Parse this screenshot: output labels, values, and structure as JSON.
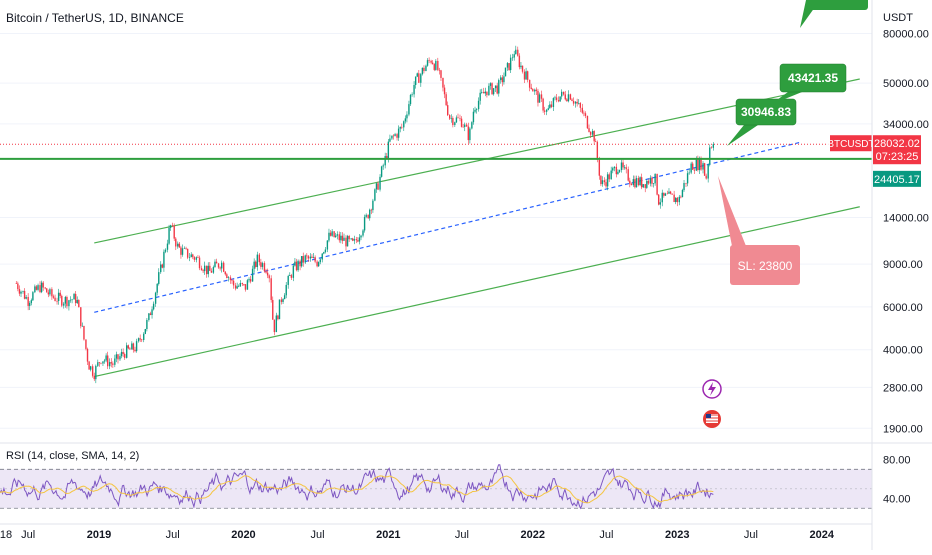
{
  "header": {
    "symbol_title": "Bitcoin / TetherUS, 1D, BINANCE"
  },
  "price_axis": {
    "currency": "USDT",
    "ticks": [
      {
        "label": "80000.00",
        "value": 80000
      },
      {
        "label": "50000.00",
        "value": 50000
      },
      {
        "label": "34000.00",
        "value": 34000
      },
      {
        "label": "14000.00",
        "value": 14000
      },
      {
        "label": "9000.00",
        "value": 9000
      },
      {
        "label": "6000.00",
        "value": 6000
      },
      {
        "label": "4000.00",
        "value": 4000
      },
      {
        "label": "2800.00",
        "value": 2800
      },
      {
        "label": "1900.00",
        "value": 1900
      }
    ],
    "last_price_tag": {
      "symbol": "BTCUSDT",
      "price": "28032.02",
      "countdown": "07:23:25",
      "value": 28032.02,
      "color": "#f23645"
    },
    "level_tag": {
      "label": "24405.17",
      "value": 24405.17,
      "color": "#089981"
    }
  },
  "time_axis": {
    "ticks": [
      "18",
      "Jul",
      "2019",
      "Jul",
      "2020",
      "Jul",
      "2021",
      "Jul",
      "2022",
      "Jul",
      "2023",
      "Jul",
      "2024"
    ]
  },
  "annotations": {
    "target_1": {
      "text": "30946.83",
      "value": 30946.83,
      "color": "#2e9e3e"
    },
    "target_2": {
      "text": "43421.35",
      "value": 43421.35,
      "color": "#2e9e3e"
    },
    "stop_loss": {
      "text": "SL: 23800",
      "value": 23800,
      "color": "#f08a92"
    }
  },
  "event_icons": [
    {
      "name": "lightning-icon",
      "color": "#9c27b0"
    },
    {
      "name": "us-flag-icon",
      "color": "#e53935"
    }
  ],
  "rsi_panel": {
    "title": "RSI (14, close, SMA, 14, 2)",
    "ticks": [
      {
        "label": "80.00",
        "value": 80
      },
      {
        "label": "40.00",
        "value": 40
      }
    ],
    "upper_band": 70,
    "lower_band": 30,
    "middle_band": 50,
    "band_fill": "#ede7f6",
    "rsi_color": "#7e57c2",
    "sma_color": "#f5c542"
  },
  "chart_data": {
    "type": "candlestick",
    "symbol": "BTCUSDT",
    "timeframe": "1D",
    "scale": "log",
    "x_range": [
      "2018-05",
      "2024-05"
    ],
    "y_range": [
      1700,
      100000
    ],
    "colors": {
      "up": "#089981",
      "down": "#f23645",
      "channel": "#4caf50",
      "level_line": "#089981",
      "dotted_price_line": "#f23645",
      "dashed_trend": "#2962ff"
    },
    "close_path": [
      [
        "2018-06-01",
        7500
      ],
      [
        "2018-07-01",
        6400
      ],
      [
        "2018-08-01",
        7300
      ],
      [
        "2018-09-01",
        6600
      ],
      [
        "2018-10-01",
        6400
      ],
      [
        "2018-11-01",
        6500
      ],
      [
        "2018-12-01",
        3500
      ],
      [
        "2018-12-15",
        3200
      ],
      [
        "2019-01-01",
        3700
      ],
      [
        "2019-02-01",
        3500
      ],
      [
        "2019-03-01",
        3900
      ],
      [
        "2019-04-01",
        4100
      ],
      [
        "2019-05-01",
        5300
      ],
      [
        "2019-06-01",
        8500
      ],
      [
        "2019-06-26",
        13000
      ],
      [
        "2019-07-15",
        10500
      ],
      [
        "2019-08-01",
        10000
      ],
      [
        "2019-09-01",
        9500
      ],
      [
        "2019-10-01",
        8300
      ],
      [
        "2019-11-01",
        9200
      ],
      [
        "2019-12-01",
        7400
      ],
      [
        "2020-01-01",
        7200
      ],
      [
        "2020-02-01",
        9400
      ],
      [
        "2020-03-01",
        8500
      ],
      [
        "2020-03-13",
        4800
      ],
      [
        "2020-04-01",
        6500
      ],
      [
        "2020-05-01",
        8600
      ],
      [
        "2020-06-01",
        9500
      ],
      [
        "2020-07-01",
        9200
      ],
      [
        "2020-08-01",
        11800
      ],
      [
        "2020-09-01",
        11400
      ],
      [
        "2020-10-01",
        10800
      ],
      [
        "2020-11-01",
        13800
      ],
      [
        "2020-12-01",
        19000
      ],
      [
        "2021-01-01",
        29000
      ],
      [
        "2021-02-01",
        33000
      ],
      [
        "2021-03-01",
        49000
      ],
      [
        "2021-04-01",
        59000
      ],
      [
        "2021-04-15",
        63000
      ],
      [
        "2021-05-01",
        57000
      ],
      [
        "2021-06-01",
        36000
      ],
      [
        "2021-07-01",
        35000
      ],
      [
        "2021-07-20",
        30000
      ],
      [
        "2021-08-01",
        40000
      ],
      [
        "2021-09-01",
        47000
      ],
      [
        "2021-10-01",
        48000
      ],
      [
        "2021-11-01",
        61000
      ],
      [
        "2021-11-10",
        68000
      ],
      [
        "2021-12-01",
        57000
      ],
      [
        "2022-01-01",
        46000
      ],
      [
        "2022-02-01",
        38000
      ],
      [
        "2022-03-01",
        44000
      ],
      [
        "2022-04-01",
        45000
      ],
      [
        "2022-05-01",
        38000
      ],
      [
        "2022-06-01",
        30000
      ],
      [
        "2022-06-18",
        19000
      ],
      [
        "2022-07-01",
        20000
      ],
      [
        "2022-08-01",
        23000
      ],
      [
        "2022-09-01",
        20000
      ],
      [
        "2022-10-01",
        19400
      ],
      [
        "2022-11-01",
        20500
      ],
      [
        "2022-11-10",
        16500
      ],
      [
        "2022-12-01",
        17000
      ],
      [
        "2023-01-01",
        16600
      ],
      [
        "2023-02-01",
        23000
      ],
      [
        "2023-03-01",
        23500
      ],
      [
        "2023-03-10",
        20000
      ],
      [
        "2023-03-20",
        28000
      ],
      [
        "2023-03-28",
        28032.02
      ]
    ],
    "channel_upper": {
      "from": [
        "2018-12-15",
        11000
      ],
      "to": [
        "2024-04-01",
        52000
      ]
    },
    "channel_lower": {
      "from": [
        "2018-12-15",
        3100
      ],
      "to": [
        "2024-04-01",
        15500
      ]
    },
    "dashed_trend": {
      "from": [
        "2018-12-15",
        5700
      ],
      "to": [
        "2023-11-01",
        28500
      ]
    },
    "horizontal_level": 24405.17,
    "rsi": {
      "min": 20,
      "max": 95,
      "overbought": 70,
      "oversold": 30
    }
  }
}
